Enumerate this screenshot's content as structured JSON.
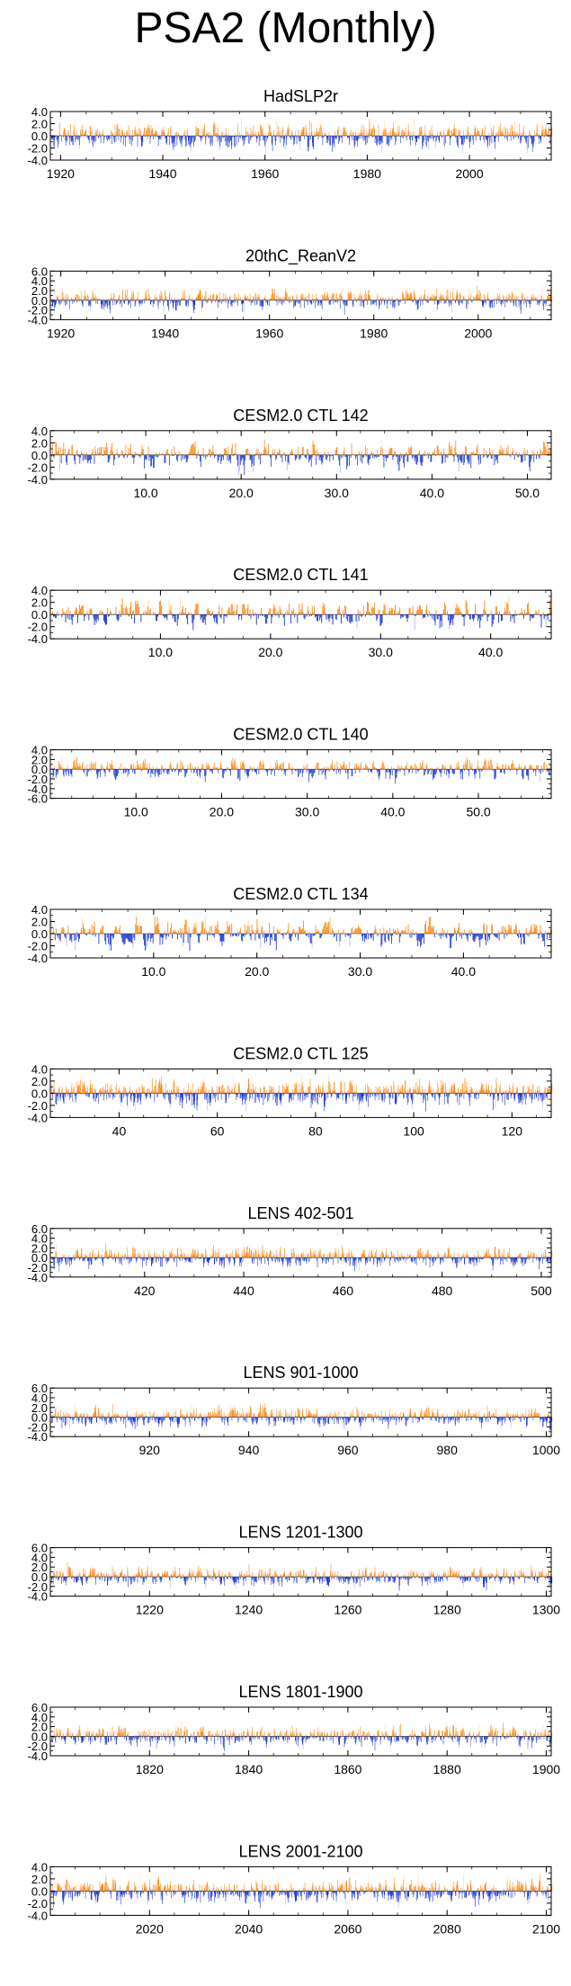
{
  "title": "PSA2 (Monthly)",
  "colors": {
    "positive": "#ff8c1a",
    "negative": "#1f3bd6",
    "frame": "#000000"
  },
  "chart_data": [
    {
      "type": "bar",
      "title": "HadSLP2r",
      "xlim": [
        1918,
        2016
      ],
      "ylim": [
        -4,
        4
      ],
      "yticks": [
        -4,
        -2,
        0,
        2,
        4
      ],
      "ytick_labels": [
        "-4.0",
        "-2.0",
        "0.0",
        "2.0",
        "4.0"
      ],
      "xticks": [
        1920,
        1940,
        1960,
        1980,
        2000
      ],
      "xtick_labels": [
        "1920",
        "1940",
        "1960",
        "1980",
        "2000"
      ],
      "series": [
        {
          "resolution": "monthly",
          "approx_amplitude": 1.1,
          "max_abs": 2.8
        }
      ]
    },
    {
      "type": "bar",
      "title": "20thC_ReanV2",
      "xlim": [
        1918,
        2014
      ],
      "ylim": [
        -4,
        6
      ],
      "yticks": [
        -4,
        -2,
        0,
        2,
        4,
        6
      ],
      "ytick_labels": [
        "-4.0",
        "-2.0",
        "0.0",
        "2.0",
        "4.0",
        "6.0"
      ],
      "xticks": [
        1920,
        1940,
        1960,
        1980,
        2000
      ],
      "xtick_labels": [
        "1920",
        "1940",
        "1960",
        "1980",
        "2000"
      ],
      "series": [
        {
          "resolution": "monthly",
          "approx_amplitude": 1.0,
          "max_abs": 3.2
        }
      ]
    },
    {
      "type": "bar",
      "title": "CESM2.0 CTL 142",
      "xlim": [
        0,
        52.5
      ],
      "ylim": [
        -4,
        4
      ],
      "yticks": [
        -4,
        -2,
        0,
        2,
        4
      ],
      "ytick_labels": [
        "-4.0",
        "-2.0",
        "0.0",
        "2.0",
        "4.0"
      ],
      "xticks": [
        10,
        20,
        30,
        40,
        50
      ],
      "xtick_labels": [
        "10.0",
        "20.0",
        "30.0",
        "40.0",
        "50.0"
      ],
      "series": [
        {
          "resolution": "monthly",
          "approx_amplitude": 1.1,
          "max_abs": 3.3
        }
      ]
    },
    {
      "type": "bar",
      "title": "CESM2.0 CTL 141",
      "xlim": [
        0,
        45.5
      ],
      "ylim": [
        -4,
        4
      ],
      "yticks": [
        -4,
        -2,
        0,
        2,
        4
      ],
      "ytick_labels": [
        "-4.0",
        "-2.0",
        "0.0",
        "2.0",
        "4.0"
      ],
      "xticks": [
        10,
        20,
        30,
        40
      ],
      "xtick_labels": [
        "10.0",
        "20.0",
        "30.0",
        "40.0"
      ],
      "series": [
        {
          "resolution": "monthly",
          "approx_amplitude": 1.1,
          "max_abs": 3.0
        }
      ]
    },
    {
      "type": "bar",
      "title": "CESM2.0 CTL 140",
      "xlim": [
        0,
        58.5
      ],
      "ylim": [
        -6,
        4
      ],
      "yticks": [
        -6,
        -4,
        -2,
        0,
        2,
        4
      ],
      "ytick_labels": [
        "-6.0",
        "-4.0",
        "-2.0",
        "0.0",
        "2.0",
        "4.0"
      ],
      "xticks": [
        10,
        20,
        30,
        40,
        50
      ],
      "xtick_labels": [
        "10.0",
        "20.0",
        "30.0",
        "40.0",
        "50.0"
      ],
      "series": [
        {
          "resolution": "monthly",
          "approx_amplitude": 1.1,
          "max_abs": 3.5
        }
      ]
    },
    {
      "type": "bar",
      "title": "CESM2.0 CTL 134",
      "xlim": [
        0,
        48.5
      ],
      "ylim": [
        -4,
        4
      ],
      "yticks": [
        -4,
        -2,
        0,
        2,
        4
      ],
      "ytick_labels": [
        "-4.0",
        "-2.0",
        "0.0",
        "2.0",
        "4.0"
      ],
      "xticks": [
        10,
        20,
        30,
        40
      ],
      "xtick_labels": [
        "10.0",
        "20.0",
        "30.0",
        "40.0"
      ],
      "series": [
        {
          "resolution": "monthly",
          "approx_amplitude": 1.2,
          "max_abs": 2.8
        }
      ]
    },
    {
      "type": "bar",
      "title": "CESM2.0 CTL 125",
      "xlim": [
        26,
        128
      ],
      "ylim": [
        -4,
        4
      ],
      "yticks": [
        -4,
        -2,
        0,
        2,
        4
      ],
      "ytick_labels": [
        "-4.0",
        "-2.0",
        "0.0",
        "2.0",
        "4.0"
      ],
      "xticks": [
        40,
        60,
        80,
        100,
        120
      ],
      "xtick_labels": [
        "40",
        "60",
        "80",
        "100",
        "120"
      ],
      "series": [
        {
          "resolution": "monthly",
          "approx_amplitude": 1.1,
          "max_abs": 3.0
        }
      ]
    },
    {
      "type": "bar",
      "title": "LENS 402-501",
      "xlim": [
        401,
        502
      ],
      "ylim": [
        -4,
        6
      ],
      "yticks": [
        -4,
        -2,
        0,
        2,
        4,
        6
      ],
      "ytick_labels": [
        "-4.0",
        "-2.0",
        "0.0",
        "2.0",
        "4.0",
        "6.0"
      ],
      "xticks": [
        420,
        440,
        460,
        480,
        500
      ],
      "xtick_labels": [
        "420",
        "440",
        "460",
        "480",
        "500"
      ],
      "series": [
        {
          "resolution": "monthly",
          "approx_amplitude": 1.0,
          "max_abs": 3.0
        }
      ]
    },
    {
      "type": "bar",
      "title": "LENS 901-1000",
      "xlim": [
        900,
        1001
      ],
      "ylim": [
        -4,
        6
      ],
      "yticks": [
        -4,
        -2,
        0,
        2,
        4,
        6
      ],
      "ytick_labels": [
        "-4.0",
        "-2.0",
        "0.0",
        "2.0",
        "4.0",
        "6.0"
      ],
      "xticks": [
        920,
        940,
        960,
        980,
        1000
      ],
      "xtick_labels": [
        "920",
        "940",
        "960",
        "980",
        "1000"
      ],
      "series": [
        {
          "resolution": "monthly",
          "approx_amplitude": 1.0,
          "max_abs": 3.0
        }
      ]
    },
    {
      "type": "bar",
      "title": "LENS 1201-1300",
      "xlim": [
        1200,
        1301
      ],
      "ylim": [
        -4,
        6
      ],
      "yticks": [
        -4,
        -2,
        0,
        2,
        4,
        6
      ],
      "ytick_labels": [
        "-4.0",
        "-2.0",
        "0.0",
        "2.0",
        "4.0",
        "6.0"
      ],
      "xticks": [
        1220,
        1240,
        1260,
        1280,
        1300
      ],
      "xtick_labels": [
        "1220",
        "1240",
        "1260",
        "1280",
        "1300"
      ],
      "series": [
        {
          "resolution": "monthly",
          "approx_amplitude": 1.0,
          "max_abs": 3.0
        }
      ]
    },
    {
      "type": "bar",
      "title": "LENS 1801-1900",
      "xlim": [
        1800,
        1901
      ],
      "ylim": [
        -4,
        6
      ],
      "yticks": [
        -4,
        -2,
        0,
        2,
        4,
        6
      ],
      "ytick_labels": [
        "-4.0",
        "-2.0",
        "0.0",
        "2.0",
        "4.0",
        "6.0"
      ],
      "xticks": [
        1820,
        1840,
        1860,
        1880,
        1900
      ],
      "xtick_labels": [
        "1820",
        "1840",
        "1860",
        "1880",
        "1900"
      ],
      "series": [
        {
          "resolution": "monthly",
          "approx_amplitude": 1.0,
          "max_abs": 3.0
        }
      ]
    },
    {
      "type": "bar",
      "title": "LENS 2001-2100",
      "xlim": [
        2000,
        2101
      ],
      "ylim": [
        -4,
        4
      ],
      "yticks": [
        -4,
        -2,
        0,
        2,
        4
      ],
      "ytick_labels": [
        "-4.0",
        "-2.0",
        "0.0",
        "2.0",
        "4.0"
      ],
      "xticks": [
        2020,
        2040,
        2060,
        2080,
        2100
      ],
      "xtick_labels": [
        "2020",
        "2040",
        "2060",
        "2080",
        "2100"
      ],
      "series": [
        {
          "resolution": "monthly",
          "approx_amplitude": 1.0,
          "max_abs": 2.8
        }
      ]
    }
  ]
}
